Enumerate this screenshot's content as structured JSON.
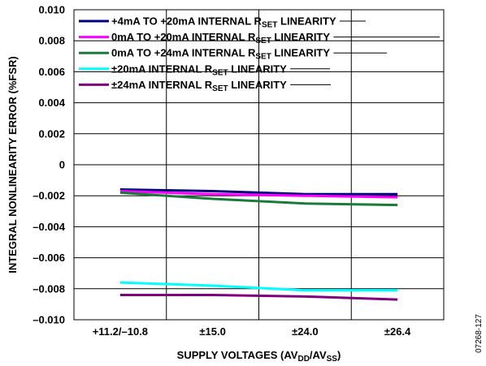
{
  "chart_data": {
    "type": "line",
    "categories": [
      "+11.2/–10.8",
      "±15.0",
      "±24.0",
      "±26.4"
    ],
    "xlabel": "SUPPLY VOLTAGES (AVDD/AVSS)",
    "xlabel_parts": {
      "a": "SUPPLY VOLTAGES (AV",
      "b": "DD",
      "c": "/AV",
      "d": "SS",
      "e": ")"
    },
    "ylabel": "INTEGRAL NONLINEARITY ERROR (%FSR)",
    "ylim": [
      -0.01,
      0.01
    ],
    "yticks": [
      "0.010",
      "0.008",
      "0.006",
      "0.004",
      "0.002",
      "0",
      "–0.002",
      "–0.004",
      "–0.006",
      "–0.008",
      "–0.010"
    ],
    "grid": true,
    "legend_position": "top-left",
    "series": [
      {
        "name": "+4mA TO +20mA INTERNAL RSET LINEARITY",
        "label_pre": "+4mA TO +20mA INTERNAL R",
        "label_sub": "SET",
        "label_post": " LINEARITY",
        "color": "#00007f",
        "values": [
          -0.0016,
          -0.0017,
          -0.0019,
          -0.0019
        ]
      },
      {
        "name": "0mA TO +20mA INTERNAL RSET LINEARITY",
        "label_pre": "0mA TO +20mA INTERNAL R",
        "label_sub": "SET",
        "label_post": " LINEARITY",
        "color": "#ff00ff",
        "values": [
          -0.0017,
          -0.0019,
          -0.002,
          -0.0021
        ]
      },
      {
        "name": "0mA TO +24mA INTERNAL RSET LINEARITY",
        "label_pre": "0mA TO +24mA INTERNAL R",
        "label_sub": "SET",
        "label_post": " LINEARITY",
        "color": "#1a7a3a",
        "values": [
          -0.0018,
          -0.0022,
          -0.0025,
          -0.0026
        ]
      },
      {
        "name": "±20mA INTERNAL RSET LINEARITY",
        "label_pre": "±20mA INTERNAL R",
        "label_sub": "SET",
        "label_post": " LINEARITY",
        "color": "#00ffff",
        "values": [
          -0.0076,
          -0.0078,
          -0.0081,
          -0.0081
        ]
      },
      {
        "name": "±24mA INTERNAL RSET LINEARITY",
        "label_pre": "±24mA INTERNAL R",
        "label_sub": "SET",
        "label_post": " LINEARITY",
        "color": "#7f007f",
        "values": [
          -0.0084,
          -0.0084,
          -0.0085,
          -0.0087
        ]
      }
    ]
  },
  "figure_id": "07268-127"
}
